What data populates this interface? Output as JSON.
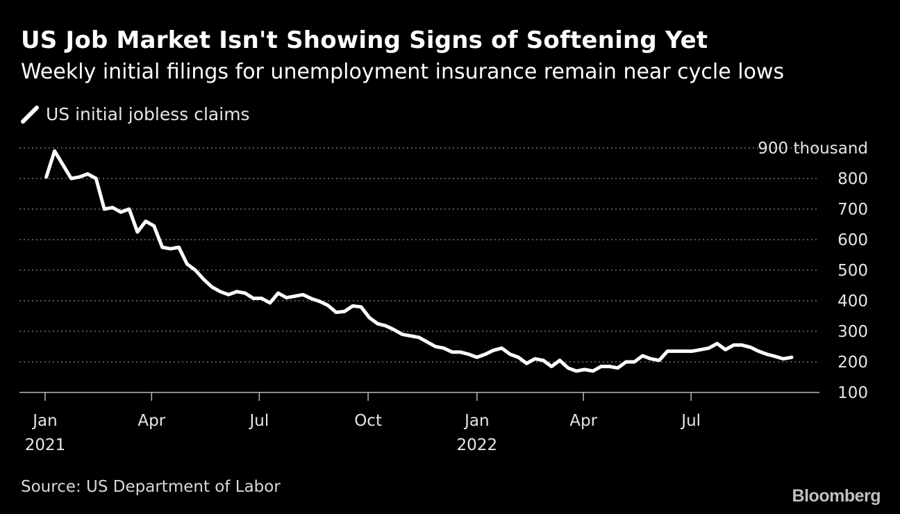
{
  "title": "US Job Market Isn't Showing Signs of Softening Yet",
  "subtitle": "Weekly initial filings for unemployment insurance remain near cycle lows",
  "source": "Source: US Department of Labor",
  "brand": "Bloomberg",
  "legend_icon": "line-swatch-icon",
  "colors": {
    "background": "#000000",
    "line": "#ffffff",
    "grid": "#777777",
    "text": "#ffffff"
  },
  "chart_data": {
    "type": "line",
    "title": "US Job Market Isn't Showing Signs of Softening Yet",
    "subtitle": "Weekly initial filings for unemployment insurance remain near cycle lows",
    "xlabel": "",
    "ylabel": "",
    "ylim": [
      100,
      900
    ],
    "y_ticks": [
      900,
      800,
      700,
      600,
      500,
      400,
      300,
      200,
      100
    ],
    "y_unit_label": "thousand",
    "grid": true,
    "legend_position": "top-left",
    "x_start": "2021-01-02",
    "x_frequency": "weekly",
    "x_ticks": [
      {
        "label": "Jan",
        "sublabel": "2021",
        "date": "2021-01-01"
      },
      {
        "label": "Apr",
        "sublabel": "",
        "date": "2021-04-01"
      },
      {
        "label": "Jul",
        "sublabel": "",
        "date": "2021-07-01"
      },
      {
        "label": "Oct",
        "sublabel": "",
        "date": "2021-10-01"
      },
      {
        "label": "Jan",
        "sublabel": "2022",
        "date": "2022-01-01"
      },
      {
        "label": "Apr",
        "sublabel": "",
        "date": "2022-04-01"
      },
      {
        "label": "Jul",
        "sublabel": "",
        "date": "2022-07-01"
      }
    ],
    "series": [
      {
        "name": "US initial jobless claims",
        "values": [
          805,
          890,
          845,
          800,
          805,
          815,
          800,
          700,
          705,
          690,
          700,
          625,
          660,
          645,
          575,
          570,
          575,
          520,
          500,
          470,
          445,
          430,
          420,
          430,
          425,
          408,
          408,
          393,
          425,
          410,
          415,
          420,
          407,
          398,
          385,
          362,
          365,
          383,
          380,
          345,
          325,
          318,
          305,
          290,
          285,
          280,
          265,
          250,
          245,
          232,
          232,
          225,
          215,
          225,
          238,
          245,
          225,
          215,
          195,
          210,
          205,
          185,
          205,
          180,
          170,
          175,
          170,
          185,
          185,
          180,
          200,
          200,
          220,
          210,
          205,
          235,
          235,
          235,
          235,
          240,
          245,
          260,
          240,
          255,
          255,
          248,
          235,
          225,
          218,
          210,
          215
        ]
      }
    ]
  }
}
